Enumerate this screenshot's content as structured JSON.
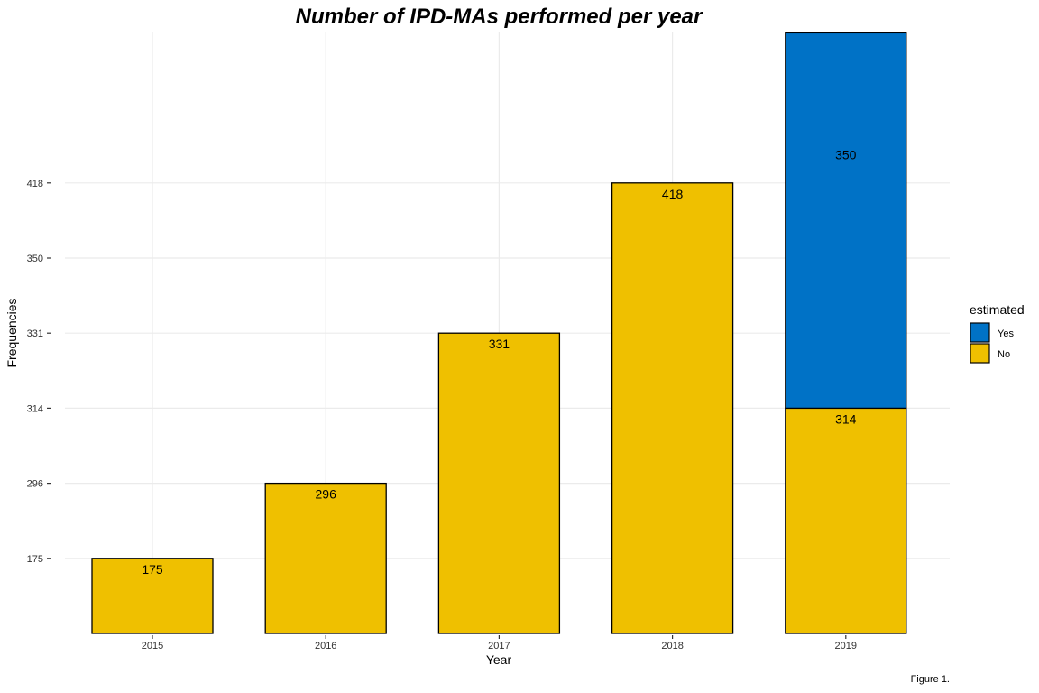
{
  "chart_data": {
    "type": "bar",
    "stacked": true,
    "title": "Number of IPD-MAs performed per year",
    "xlabel": "Year",
    "ylabel": "Frequencies",
    "caption": "Figure 1.",
    "categories": [
      "2015",
      "2016",
      "2017",
      "2018",
      "2019"
    ],
    "y_tick_labels": [
      "175",
      "296",
      "314",
      "331",
      "350",
      "418"
    ],
    "y_axis_note": "tick labels are evenly spaced categorical-style labels, not a linear scale",
    "grid": true,
    "legend": {
      "title": "estimated",
      "placement": "right",
      "entries": [
        {
          "name": "Yes",
          "color": "#0072c6"
        },
        {
          "name": "No",
          "color": "#efc000"
        }
      ]
    },
    "series": [
      {
        "name": "No",
        "color": "#efc000",
        "values": [
          175,
          296,
          331,
          418,
          314
        ],
        "labels": [
          "175",
          "296",
          "331",
          "418",
          "314"
        ]
      },
      {
        "name": "Yes",
        "color": "#0072c6",
        "values": [
          null,
          null,
          null,
          null,
          350
        ],
        "labels": [
          "",
          "",
          "",
          "",
          "350"
        ]
      }
    ]
  }
}
